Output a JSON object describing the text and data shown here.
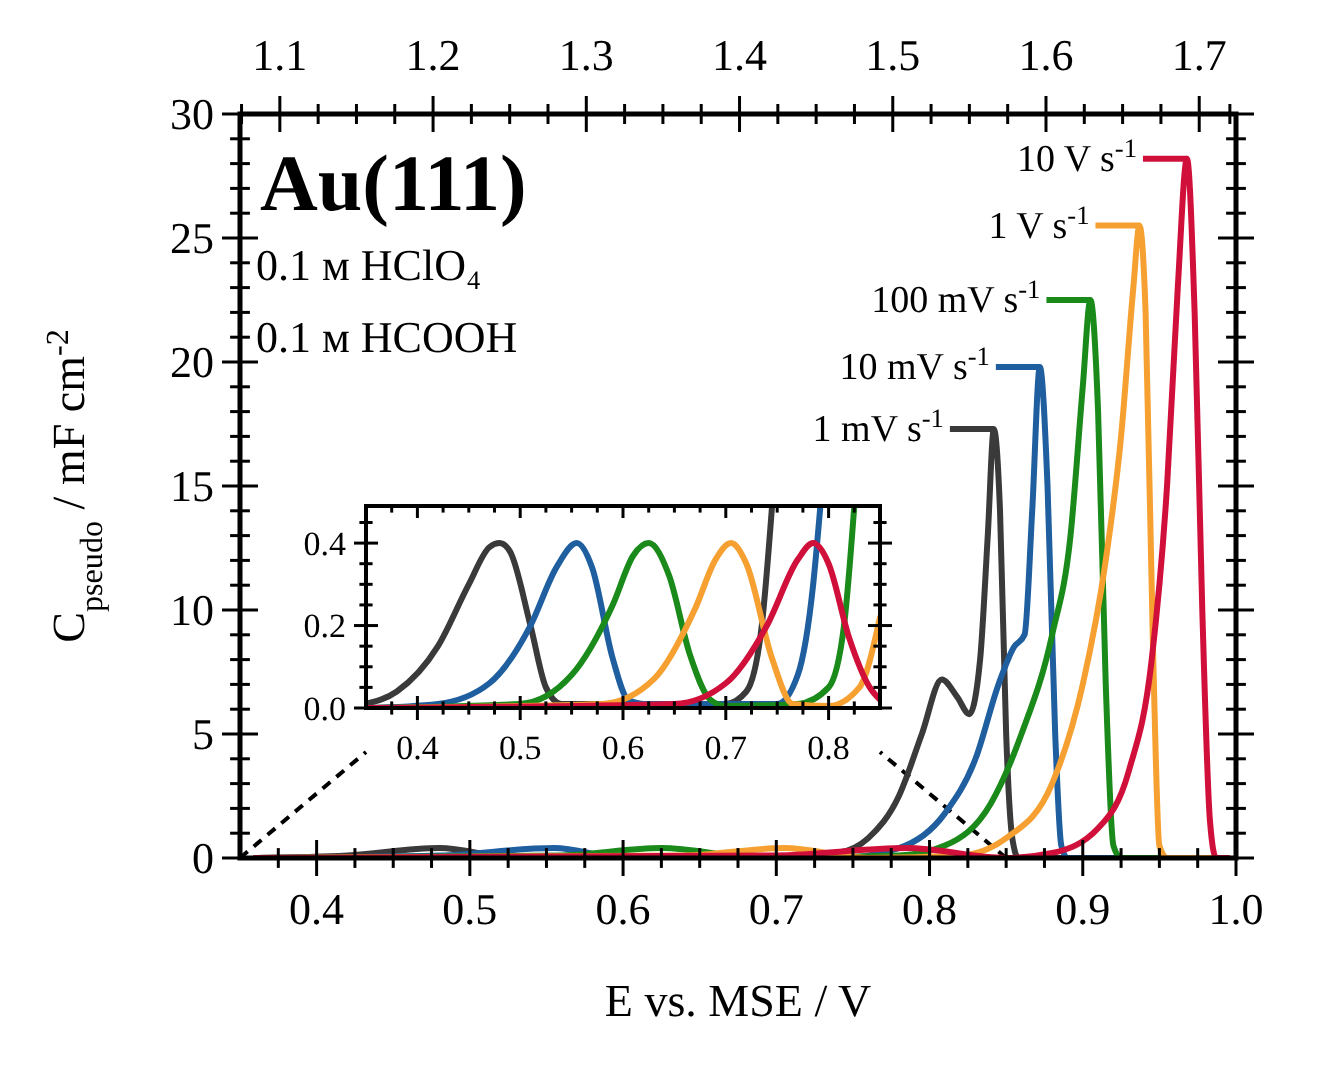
{
  "chart_data": [
    {
      "type": "line",
      "legend": "top right",
      "title": "Au(111)",
      "xlabel": "E vs. MSE / V",
      "ylabel": "C$_{pseudo}$ / mF cm$^{-2}$",
      "annotations": [
        "0.1 ᴍ HClO₄",
        "0.1 ᴍ HCOOH"
      ],
      "xlim": [
        0.35,
        1.0
      ],
      "ylim": [
        0,
        30
      ],
      "xticks": [
        {
          "value": 0.375,
          "label": null
        },
        0.4,
        {
          "value": 0.425,
          "label": null
        },
        {
          "value": 0.45,
          "label": null
        },
        {
          "value": 0.475,
          "label": null
        },
        0.5,
        {
          "value": 0.525,
          "label": null
        },
        {
          "value": 0.55,
          "label": null
        },
        {
          "value": 0.575,
          "label": null
        },
        0.6,
        {
          "value": 0.625,
          "label": null
        },
        {
          "value": 0.65,
          "label": null
        },
        {
          "value": 0.675,
          "label": null
        },
        0.7,
        {
          "value": 0.725,
          "label": null
        },
        {
          "value": 0.75,
          "label": null
        },
        {
          "value": 0.775,
          "label": null
        },
        0.8,
        {
          "value": 0.825,
          "label": null
        },
        {
          "value": 0.85,
          "label": null
        },
        {
          "value": 0.875,
          "label": null
        },
        0.9,
        {
          "value": 0.925,
          "label": null
        },
        {
          "value": 0.95,
          "label": null
        },
        {
          "value": 0.975,
          "label": null
        },
        {
          "value": 1.0,
          "label": "1.0"
        }
      ],
      "yticks": [
        0,
        {
          "value": 1,
          "label": null
        },
        {
          "value": 2,
          "label": null
        },
        {
          "value": 3,
          "label": null
        },
        {
          "value": 4,
          "label": null
        },
        5,
        {
          "value": 6,
          "label": null
        },
        {
          "value": 7,
          "label": null
        },
        {
          "value": 8,
          "label": null
        },
        {
          "value": 9,
          "label": null
        },
        10,
        {
          "value": 11,
          "label": null
        },
        {
          "value": 12,
          "label": null
        },
        {
          "value": 13,
          "label": null
        },
        {
          "value": 14,
          "label": null
        },
        15,
        {
          "value": 16,
          "label": null
        },
        {
          "value": 17,
          "label": null
        },
        {
          "value": 18,
          "label": null
        },
        {
          "value": 19,
          "label": null
        },
        20,
        {
          "value": 21,
          "label": null
        },
        {
          "value": 22,
          "label": null
        },
        {
          "value": 23,
          "label": null
        },
        {
          "value": 24,
          "label": null
        },
        25,
        {
          "value": 26,
          "label": null
        },
        {
          "value": 27,
          "label": null
        },
        {
          "value": 28,
          "label": null
        },
        {
          "value": 29,
          "label": null
        },
        30
      ],
      "x2lim": [
        1.074,
        1.724
      ],
      "x2ticks": [
        {
          "value": 1.075,
          "label": null
        },
        1.1,
        {
          "value": 1.125,
          "label": null
        },
        {
          "value": 1.15,
          "label": null
        },
        {
          "value": 1.175,
          "label": null
        },
        1.2,
        {
          "value": 1.225,
          "label": null
        },
        {
          "value": 1.25,
          "label": null
        },
        {
          "value": 1.275,
          "label": null
        },
        1.3,
        {
          "value": 1.325,
          "label": null
        },
        {
          "value": 1.35,
          "label": null
        },
        {
          "value": 1.375,
          "label": null
        },
        1.4,
        {
          "value": 1.425,
          "label": null
        },
        {
          "value": 1.45,
          "label": null
        },
        {
          "value": 1.475,
          "label": null
        },
        1.5,
        {
          "value": 1.525,
          "label": null
        },
        {
          "value": 1.55,
          "label": null
        },
        {
          "value": 1.575,
          "label": null
        },
        1.6,
        {
          "value": 1.625,
          "label": null
        },
        {
          "value": 1.65,
          "label": null
        },
        {
          "value": 1.675,
          "label": null
        },
        1.7,
        {
          "value": 1.72,
          "label": null
        }
      ],
      "series": [
        {
          "name": "1 mV s$^{-1}$",
          "color": "#3a3a3a",
          "x": [
            0.36,
            0.42,
            0.48,
            0.53,
            0.7,
            0.74,
            0.76,
            0.78,
            0.795,
            0.808,
            0.818,
            0.826,
            0.833,
            0.838,
            0.842,
            0.846,
            0.85,
            0.854,
            0.858,
            0.99
          ],
          "values": [
            0,
            0.1,
            0.4,
            0,
            0,
            0.2,
            0.8,
            2.5,
            5,
            7.2,
            6.5,
            5.8,
            8,
            13,
            17.3,
            14,
            5,
            0.8,
            0,
            0
          ]
        },
        {
          "name": "10 mV s$^{-1}$",
          "color": "#1f5f9f",
          "x": [
            0.36,
            0.48,
            0.555,
            0.6,
            0.74,
            0.78,
            0.81,
            0.83,
            0.845,
            0.855,
            0.862,
            0.867,
            0.872,
            0.877,
            0.882,
            0.886,
            0.89,
            0.99
          ],
          "values": [
            0,
            0.1,
            0.4,
            0,
            0,
            0.4,
            1.8,
            4,
            7,
            8.5,
            9,
            14,
            19.8,
            15,
            5,
            0.5,
            0,
            0
          ]
        },
        {
          "name": "100 mV s$^{-1}$",
          "color": "#1a8a1a",
          "x": [
            0.36,
            0.56,
            0.625,
            0.69,
            0.78,
            0.81,
            0.84,
            0.86,
            0.88,
            0.892,
            0.9,
            0.905,
            0.91,
            0.915,
            0.92,
            0.925,
            0.99
          ],
          "values": [
            0,
            0.1,
            0.4,
            0,
            0.1,
            0.5,
            2.2,
            5,
            9,
            13,
            19,
            22.5,
            18,
            7,
            0.5,
            0,
            0
          ]
        },
        {
          "name": "1 V s$^{-1}$",
          "color": "#f5a030",
          "x": [
            0.36,
            0.64,
            0.705,
            0.76,
            0.82,
            0.85,
            0.88,
            0.9,
            0.915,
            0.925,
            0.933,
            0.937,
            0.941,
            0.946,
            0.95,
            0.955,
            0.99
          ],
          "values": [
            0,
            0.1,
            0.4,
            0,
            0.1,
            0.8,
            3,
            7,
            12,
            17,
            23,
            25.5,
            22,
            8,
            0.5,
            0,
            0
          ]
        },
        {
          "name": "10 V s$^{-1}$",
          "color": "#d0103a",
          "x": [
            0.36,
            0.7,
            0.785,
            0.85,
            0.88,
            0.91,
            0.93,
            0.945,
            0.955,
            0.962,
            0.968,
            0.973,
            0.978,
            0.983,
            0.987,
            0.995
          ],
          "values": [
            0,
            0.1,
            0.4,
            0,
            0.2,
            1.2,
            3.5,
            8,
            15,
            23,
            28.2,
            22,
            10,
            1.5,
            0,
            0
          ]
        }
      ]
    },
    {
      "type": "line",
      "xlim": [
        0.35,
        0.85
      ],
      "ylim": [
        0,
        0.49
      ],
      "xticks": [
        {
          "value": 0.375,
          "label": null
        },
        0.4,
        {
          "value": 0.425,
          "label": null
        },
        {
          "value": 0.45,
          "label": null
        },
        {
          "value": 0.475,
          "label": null
        },
        0.5,
        {
          "value": 0.525,
          "label": null
        },
        {
          "value": 0.55,
          "label": null
        },
        {
          "value": 0.575,
          "label": null
        },
        0.6,
        {
          "value": 0.625,
          "label": null
        },
        {
          "value": 0.65,
          "label": null
        },
        {
          "value": 0.675,
          "label": null
        },
        0.7,
        {
          "value": 0.725,
          "label": null
        },
        {
          "value": 0.75,
          "label": null
        },
        {
          "value": 0.775,
          "label": null
        },
        0.8,
        {
          "value": 0.825,
          "label": null
        }
      ],
      "yticks": [
        {
          "value": 0,
          "label": "0.0"
        },
        {
          "value": 0.05,
          "label": null
        },
        {
          "value": 0.1,
          "label": null
        },
        {
          "value": 0.15,
          "label": null
        },
        0.2,
        {
          "value": 0.25,
          "label": null
        },
        {
          "value": 0.3,
          "label": null
        },
        {
          "value": 0.35,
          "label": null
        },
        0.4,
        {
          "value": 0.45,
          "label": null
        }
      ],
      "series": [
        {
          "color": "#3a3a3a",
          "x": [
            0.35,
            0.38,
            0.42,
            0.45,
            0.47,
            0.48,
            0.49,
            0.51,
            0.525,
            0.54,
            0.7,
            0.72,
            0.735,
            0.745
          ],
          "values": [
            0.01,
            0.04,
            0.15,
            0.3,
            0.39,
            0.4,
            0.38,
            0.2,
            0.05,
            0.01,
            0.01,
            0.04,
            0.2,
            0.49
          ]
        },
        {
          "color": "#1f5f9f",
          "x": [
            0.35,
            0.42,
            0.47,
            0.51,
            0.535,
            0.555,
            0.57,
            0.59,
            0.605,
            0.62,
            0.75,
            0.77,
            0.785,
            0.792
          ],
          "values": [
            0,
            0.01,
            0.06,
            0.2,
            0.34,
            0.4,
            0.34,
            0.12,
            0.02,
            0.01,
            0.01,
            0.08,
            0.3,
            0.49
          ]
        },
        {
          "color": "#1a8a1a",
          "x": [
            0.35,
            0.5,
            0.55,
            0.59,
            0.61,
            0.625,
            0.645,
            0.665,
            0.685,
            0.7,
            0.77,
            0.8,
            0.815,
            0.825
          ],
          "values": [
            0,
            0.01,
            0.08,
            0.25,
            0.37,
            0.4,
            0.32,
            0.13,
            0.02,
            0.005,
            0.01,
            0.05,
            0.2,
            0.49
          ]
        },
        {
          "color": "#f5a030",
          "x": [
            0.35,
            0.58,
            0.63,
            0.67,
            0.69,
            0.705,
            0.72,
            0.745,
            0.765,
            0.8,
            0.83,
            0.85
          ],
          "values": [
            0,
            0.01,
            0.07,
            0.24,
            0.36,
            0.4,
            0.35,
            0.12,
            0.01,
            0.005,
            0.05,
            0.22
          ]
        },
        {
          "color": "#d0103a",
          "x": [
            0.35,
            0.65,
            0.7,
            0.74,
            0.77,
            0.785,
            0.8,
            0.82,
            0.84,
            0.85
          ],
          "values": [
            0,
            0.01,
            0.06,
            0.2,
            0.36,
            0.4,
            0.35,
            0.17,
            0.05,
            0.02
          ]
        }
      ]
    }
  ]
}
